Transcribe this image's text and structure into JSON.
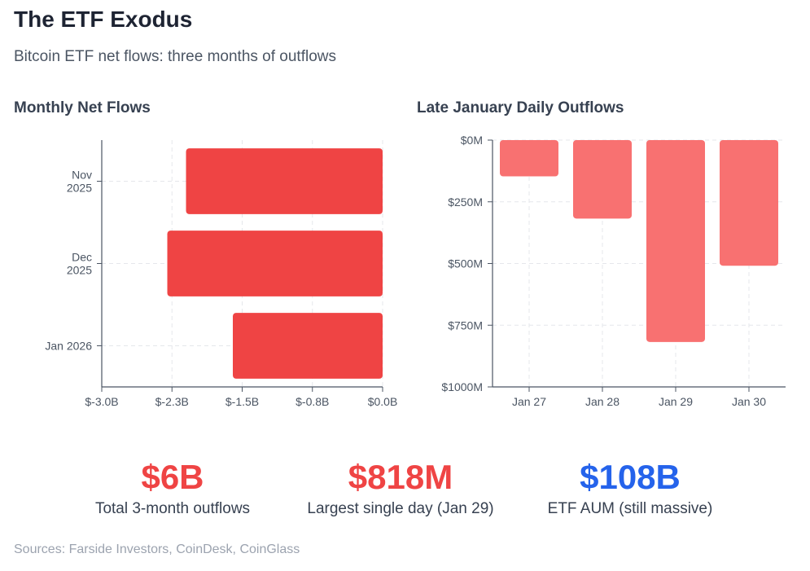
{
  "title": "The ETF Exodus",
  "subtitle": "Bitcoin ETF net flows: three months of outflows",
  "chart_data": [
    {
      "type": "bar",
      "orientation": "horizontal",
      "title": "Monthly Net Flows",
      "categories": [
        [
          "Nov",
          "2025"
        ],
        [
          "Dec",
          "2025"
        ],
        [
          "Jan 2026"
        ]
      ],
      "values": [
        -2.1,
        -2.3,
        -1.6
      ],
      "unit": "B USD",
      "xlim": [
        -3.0,
        0.0
      ],
      "xticks": [
        -3.0,
        -2.25,
        -1.5,
        -0.75,
        0.0
      ],
      "xtick_labels": [
        "$-3.0B",
        "$-2.3B",
        "$-1.5B",
        "$-0.8B",
        "$0.0B"
      ],
      "grid": true,
      "color": "#ef4444"
    },
    {
      "type": "bar",
      "orientation": "vertical",
      "title": "Late January Daily Outflows",
      "categories": [
        "Jan 27",
        "Jan 28",
        "Jan 29",
        "Jan 30"
      ],
      "values": [
        147,
        318,
        818,
        509
      ],
      "unit": "M USD",
      "ylim": [
        0,
        1000
      ],
      "y_inverted": true,
      "yticks": [
        0,
        250,
        500,
        750,
        1000
      ],
      "ytick_labels": [
        "$0M",
        "$250M",
        "$500M",
        "$750M",
        "$1000M"
      ],
      "grid": true,
      "color": "#f87171"
    }
  ],
  "stats": [
    {
      "value": "$6B",
      "label": "Total 3-month outflows",
      "color": "#ef4444"
    },
    {
      "value": "$818M",
      "label": "Largest single day (Jan 29)",
      "color": "#ef4444"
    },
    {
      "value": "$108B",
      "label": "ETF AUM (still massive)",
      "color": "#2563eb"
    }
  ],
  "sources": "Sources: Farside Investors, CoinDesk, CoinGlass"
}
